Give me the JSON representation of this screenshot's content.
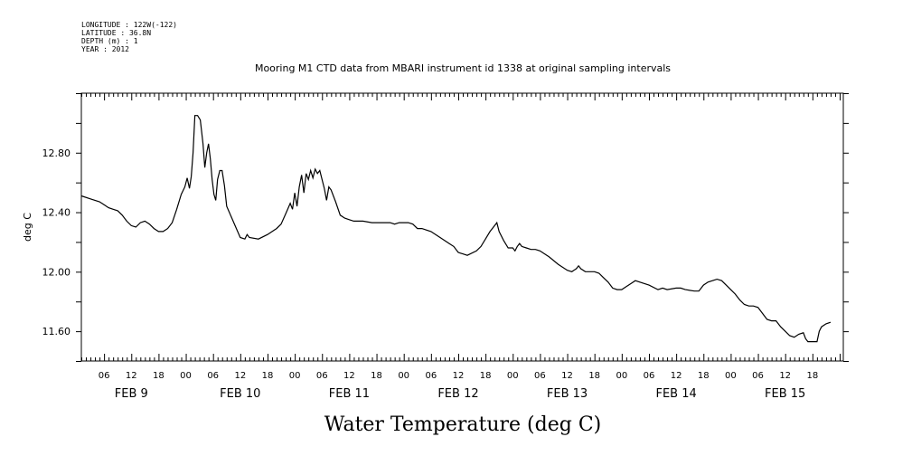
{
  "metadata": [
    "LONGITUDE : 122W(-122)",
    "LATITUDE : 36.8N",
    "DEPTH (m) : 1",
    "YEAR : 2012"
  ],
  "chart_data": {
    "type": "line",
    "title": "Mooring M1 CTD data from MBARI instrument id 1338 at original sampling intervals",
    "xlabel": "Water Temperature (deg C)",
    "ylabel": "deg C",
    "ylim": [
      11.4,
      13.2
    ],
    "y_ticks": [
      11.6,
      12.0,
      12.4,
      12.8
    ],
    "y_tick_labels": [
      "11.60",
      "12.00",
      "12.40",
      "12.80"
    ],
    "x_unit": "hours since 2012-02-08 00:00",
    "xlim": [
      1.0,
      168.8
    ],
    "x_tick_labels": [
      {
        "x": 6,
        "label": "06"
      },
      {
        "x": 12,
        "label": "12"
      },
      {
        "x": 18,
        "label": "18"
      },
      {
        "x": 24,
        "label": "00"
      },
      {
        "x": 30,
        "label": "06"
      },
      {
        "x": 36,
        "label": "12"
      },
      {
        "x": 42,
        "label": "18"
      },
      {
        "x": 48,
        "label": "00"
      },
      {
        "x": 54,
        "label": "06"
      },
      {
        "x": 60,
        "label": "12"
      },
      {
        "x": 66,
        "label": "18"
      },
      {
        "x": 72,
        "label": "00"
      },
      {
        "x": 78,
        "label": "06"
      },
      {
        "x": 84,
        "label": "12"
      },
      {
        "x": 90,
        "label": "18"
      },
      {
        "x": 96,
        "label": "00"
      },
      {
        "x": 102,
        "label": "06"
      },
      {
        "x": 108,
        "label": "12"
      },
      {
        "x": 114,
        "label": "18"
      },
      {
        "x": 120,
        "label": "00"
      },
      {
        "x": 126,
        "label": "06"
      },
      {
        "x": 132,
        "label": "12"
      },
      {
        "x": 138,
        "label": "18"
      },
      {
        "x": 144,
        "label": "00"
      },
      {
        "x": 150,
        "label": "06"
      },
      {
        "x": 156,
        "label": "12"
      },
      {
        "x": 162,
        "label": "18"
      }
    ],
    "day_labels": [
      {
        "x": 12,
        "label": "FEB  9"
      },
      {
        "x": 36,
        "label": "FEB 10"
      },
      {
        "x": 60,
        "label": "FEB 11"
      },
      {
        "x": 84,
        "label": "FEB 12"
      },
      {
        "x": 108,
        "label": "FEB 13"
      },
      {
        "x": 132,
        "label": "FEB 14"
      },
      {
        "x": 156,
        "label": "FEB 15"
      }
    ],
    "grid": false,
    "series": [
      {
        "points": [
          [
            1.0,
            12.51
          ],
          [
            3.0,
            12.49
          ],
          [
            5.0,
            12.47
          ],
          [
            6.0,
            12.45
          ],
          [
            7.0,
            12.43
          ],
          [
            8.0,
            12.42
          ],
          [
            9.0,
            12.41
          ],
          [
            10.0,
            12.38
          ],
          [
            11.0,
            12.34
          ],
          [
            12.0,
            12.31
          ],
          [
            13.0,
            12.3
          ],
          [
            14.0,
            12.33
          ],
          [
            15.0,
            12.34
          ],
          [
            16.0,
            12.32
          ],
          [
            17.0,
            12.29
          ],
          [
            18.0,
            12.27
          ],
          [
            19.0,
            12.27
          ],
          [
            20.0,
            12.29
          ],
          [
            21.0,
            12.33
          ],
          [
            22.0,
            12.42
          ],
          [
            23.0,
            12.52
          ],
          [
            23.8,
            12.57
          ],
          [
            24.3,
            12.63
          ],
          [
            24.8,
            12.56
          ],
          [
            25.2,
            12.64
          ],
          [
            25.6,
            12.8
          ],
          [
            26.0,
            13.05
          ],
          [
            26.6,
            13.05
          ],
          [
            27.2,
            13.02
          ],
          [
            27.8,
            12.86
          ],
          [
            28.2,
            12.7
          ],
          [
            28.6,
            12.8
          ],
          [
            29.0,
            12.86
          ],
          [
            29.4,
            12.76
          ],
          [
            29.8,
            12.62
          ],
          [
            30.2,
            12.52
          ],
          [
            30.6,
            12.48
          ],
          [
            31.0,
            12.62
          ],
          [
            31.5,
            12.68
          ],
          [
            32.0,
            12.68
          ],
          [
            32.5,
            12.58
          ],
          [
            33.0,
            12.44
          ],
          [
            34.0,
            12.37
          ],
          [
            35.0,
            12.3
          ],
          [
            36.0,
            12.23
          ],
          [
            37.0,
            12.22
          ],
          [
            37.5,
            12.25
          ],
          [
            38.0,
            12.23
          ],
          [
            40.0,
            12.22
          ],
          [
            42.0,
            12.25
          ],
          [
            44.0,
            12.29
          ],
          [
            45.0,
            12.32
          ],
          [
            46.0,
            12.39
          ],
          [
            47.0,
            12.46
          ],
          [
            47.5,
            12.42
          ],
          [
            48.0,
            12.53
          ],
          [
            48.5,
            12.44
          ],
          [
            49.0,
            12.57
          ],
          [
            49.5,
            12.65
          ],
          [
            50.0,
            12.53
          ],
          [
            50.5,
            12.66
          ],
          [
            51.0,
            12.62
          ],
          [
            51.5,
            12.68
          ],
          [
            52.0,
            12.63
          ],
          [
            52.5,
            12.69
          ],
          [
            53.0,
            12.66
          ],
          [
            53.5,
            12.68
          ],
          [
            54.0,
            12.62
          ],
          [
            54.5,
            12.56
          ],
          [
            55.0,
            12.48
          ],
          [
            55.5,
            12.57
          ],
          [
            56.0,
            12.55
          ],
          [
            57.0,
            12.47
          ],
          [
            58.0,
            12.38
          ],
          [
            59.0,
            12.36
          ],
          [
            60.0,
            12.35
          ],
          [
            61.0,
            12.34
          ],
          [
            63.0,
            12.34
          ],
          [
            65.0,
            12.33
          ],
          [
            67.0,
            12.33
          ],
          [
            69.0,
            12.33
          ],
          [
            70.0,
            12.32
          ],
          [
            71.0,
            12.33
          ],
          [
            72.0,
            12.33
          ],
          [
            73.0,
            12.33
          ],
          [
            74.0,
            12.32
          ],
          [
            75.0,
            12.29
          ],
          [
            76.0,
            12.29
          ],
          [
            78.0,
            12.27
          ],
          [
            80.0,
            12.23
          ],
          [
            82.0,
            12.19
          ],
          [
            83.0,
            12.17
          ],
          [
            84.0,
            12.13
          ],
          [
            85.0,
            12.12
          ],
          [
            86.0,
            12.11
          ],
          [
            88.0,
            12.14
          ],
          [
            89.0,
            12.17
          ],
          [
            90.0,
            12.22
          ],
          [
            91.0,
            12.27
          ],
          [
            92.0,
            12.31
          ],
          [
            92.5,
            12.33
          ],
          [
            93.0,
            12.27
          ],
          [
            94.0,
            12.21
          ],
          [
            95.0,
            12.16
          ],
          [
            96.0,
            12.16
          ],
          [
            96.5,
            12.14
          ],
          [
            97.0,
            12.17
          ],
          [
            97.5,
            12.19
          ],
          [
            98.0,
            12.17
          ],
          [
            99.0,
            12.16
          ],
          [
            100.0,
            12.15
          ],
          [
            101.0,
            12.15
          ],
          [
            102.0,
            12.14
          ],
          [
            104.0,
            12.1
          ],
          [
            106.0,
            12.05
          ],
          [
            108.0,
            12.01
          ],
          [
            109.0,
            12.0
          ],
          [
            110.0,
            12.02
          ],
          [
            110.5,
            12.04
          ],
          [
            111.0,
            12.02
          ],
          [
            112.0,
            12.0
          ],
          [
            114.0,
            12.0
          ],
          [
            115.0,
            11.99
          ],
          [
            116.0,
            11.96
          ],
          [
            117.0,
            11.93
          ],
          [
            118.0,
            11.89
          ],
          [
            119.0,
            11.88
          ],
          [
            120.0,
            11.88
          ],
          [
            121.0,
            11.9
          ],
          [
            122.0,
            11.92
          ],
          [
            123.0,
            11.94
          ],
          [
            124.0,
            11.93
          ],
          [
            126.0,
            11.91
          ],
          [
            128.0,
            11.88
          ],
          [
            129.0,
            11.89
          ],
          [
            130.0,
            11.88
          ],
          [
            132.0,
            11.89
          ],
          [
            133.0,
            11.89
          ],
          [
            134.0,
            11.88
          ],
          [
            136.0,
            11.87
          ],
          [
            137.0,
            11.87
          ],
          [
            138.0,
            11.91
          ],
          [
            139.0,
            11.93
          ],
          [
            140.0,
            11.94
          ],
          [
            141.0,
            11.95
          ],
          [
            142.0,
            11.94
          ],
          [
            143.0,
            11.91
          ],
          [
            144.0,
            11.88
          ],
          [
            145.0,
            11.85
          ],
          [
            146.0,
            11.81
          ],
          [
            147.0,
            11.78
          ],
          [
            148.0,
            11.77
          ],
          [
            149.0,
            11.77
          ],
          [
            150.0,
            11.76
          ],
          [
            151.0,
            11.72
          ],
          [
            152.0,
            11.68
          ],
          [
            153.0,
            11.67
          ],
          [
            154.0,
            11.67
          ],
          [
            155.0,
            11.63
          ],
          [
            156.0,
            11.6
          ],
          [
            157.0,
            11.57
          ],
          [
            158.0,
            11.56
          ],
          [
            159.0,
            11.58
          ],
          [
            160.0,
            11.59
          ],
          [
            160.5,
            11.55
          ],
          [
            161.0,
            11.53
          ],
          [
            163.0,
            11.53
          ],
          [
            163.5,
            11.6
          ],
          [
            164.0,
            11.63
          ],
          [
            165.0,
            11.65
          ],
          [
            166.0,
            11.66
          ]
        ]
      }
    ]
  }
}
